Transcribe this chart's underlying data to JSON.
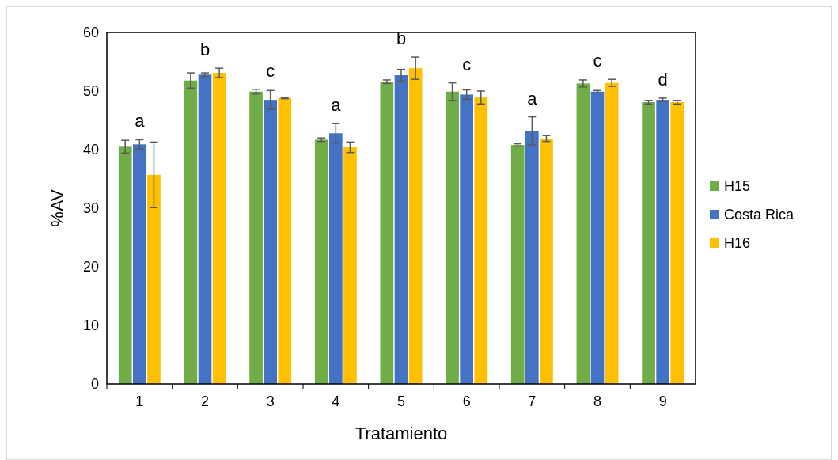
{
  "chart_data": {
    "type": "bar",
    "xlabel": "Tratamiento",
    "ylabel": "%AV",
    "categories": [
      "1",
      "2",
      "3",
      "4",
      "5",
      "6",
      "7",
      "8",
      "9"
    ],
    "series": [
      {
        "name": "H15",
        "color": "#70ad47",
        "values": [
          40.5,
          51.8,
          49.9,
          41.7,
          51.6,
          49.9,
          40.8,
          51.3,
          48.1
        ],
        "errors": [
          1.1,
          1.3,
          0.4,
          0.3,
          0.3,
          1.5,
          0.2,
          0.6,
          0.3
        ]
      },
      {
        "name": "Costa Rica",
        "color": "#4472c4",
        "values": [
          40.9,
          52.8,
          48.5,
          42.8,
          52.7,
          49.4,
          43.2,
          49.9,
          48.5
        ],
        "errors": [
          0.8,
          0.3,
          1.6,
          1.7,
          1.0,
          0.8,
          2.4,
          0.2,
          0.3
        ]
      },
      {
        "name": "H16",
        "color": "#ffc000",
        "values": [
          35.7,
          53.1,
          48.8,
          40.4,
          53.9,
          48.9,
          41.9,
          51.4,
          48.1
        ],
        "errors": [
          5.6,
          0.8,
          0.1,
          0.9,
          1.9,
          1.1,
          0.5,
          0.6,
          0.3
        ]
      }
    ],
    "annotations": [
      "a",
      "b",
      "c",
      "a",
      "b",
      "c",
      "a",
      "c",
      "d"
    ],
    "ylim": [
      0,
      60
    ],
    "yticks": [
      0,
      10,
      20,
      30,
      40,
      50,
      60
    ],
    "grid": false,
    "legend": "right"
  }
}
